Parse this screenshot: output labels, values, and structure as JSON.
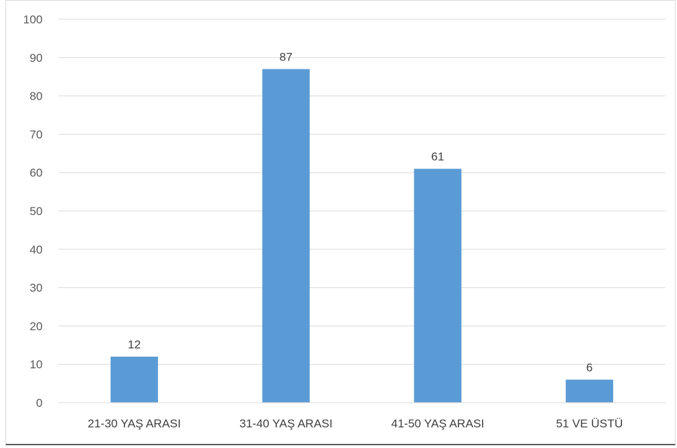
{
  "chart_data": {
    "type": "bar",
    "categories": [
      "21-30 YAŞ ARASI",
      "31-40 YAŞ ARASI",
      "41-50 YAŞ ARASI",
      "51 VE ÜSTÜ"
    ],
    "values": [
      12,
      87,
      61,
      6
    ],
    "data_labels": [
      "12",
      "87",
      "61",
      "6"
    ],
    "title": "",
    "xlabel": "",
    "ylabel": "",
    "ylim": [
      0,
      100
    ],
    "yticks": [
      "0",
      "10",
      "20",
      "30",
      "40",
      "50",
      "60",
      "70",
      "80",
      "90",
      "100"
    ],
    "grid": true,
    "legend": "none",
    "bar_color": "#5b9bd5",
    "gridline_color": "#d9d9d9"
  }
}
